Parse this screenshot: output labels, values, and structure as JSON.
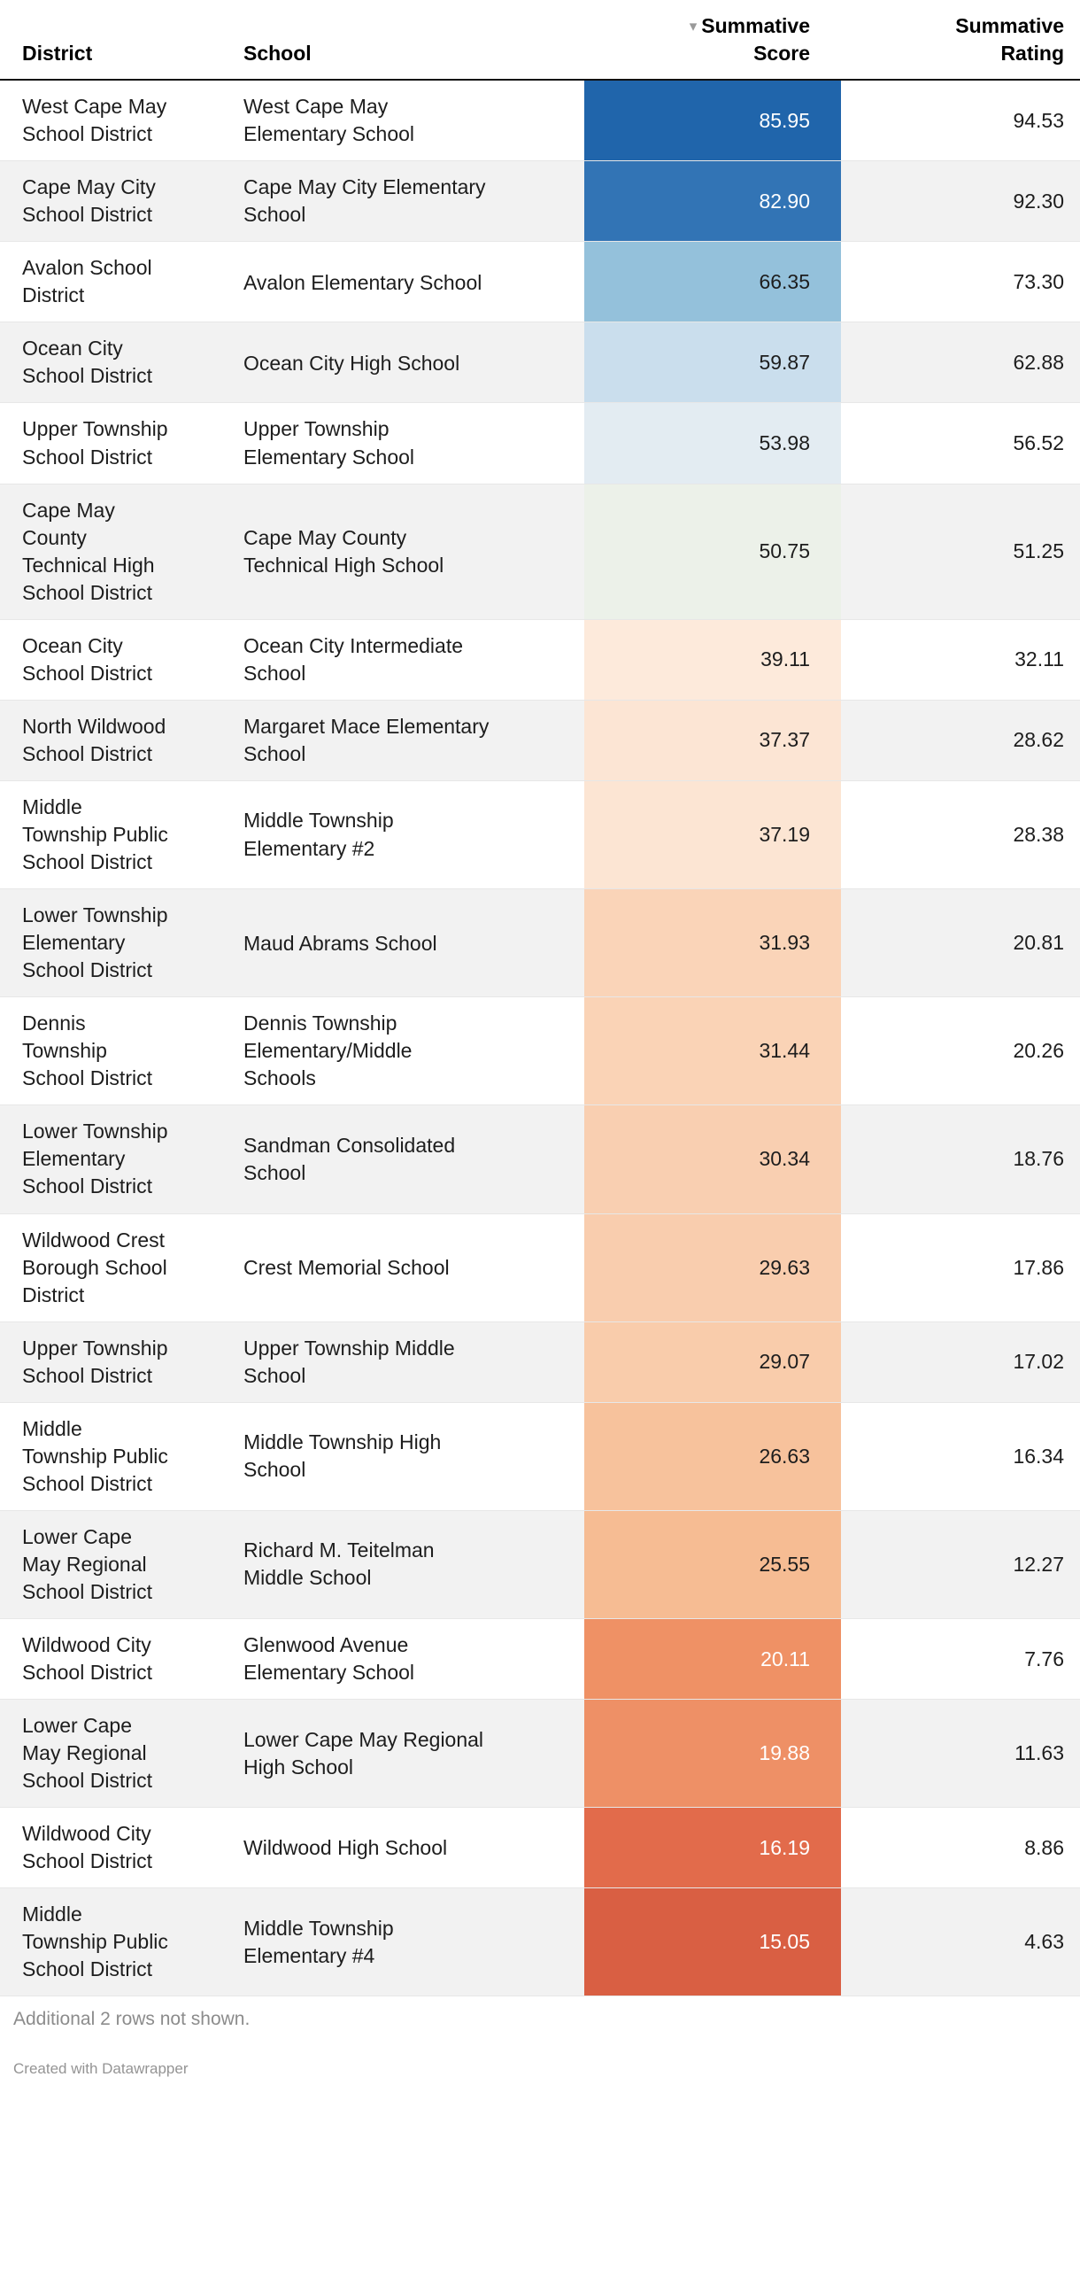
{
  "chart_data": {
    "type": "table",
    "columns": [
      {
        "label": "District",
        "align": "left"
      },
      {
        "label": "School",
        "align": "left"
      },
      {
        "line1": "Summative",
        "line2": "Score",
        "align": "right"
      },
      {
        "line1": "Summative",
        "line2": "Rating",
        "align": "right"
      }
    ],
    "sort": {
      "column": "Summative Score",
      "direction": "descending",
      "icon": "▾"
    },
    "rows": [
      {
        "district": "West Cape May School District",
        "school": "West Cape May Elementary School",
        "score": 85.95,
        "rating": 94.53,
        "score_bg": "#2065ab",
        "score_text_color": "#ffffff"
      },
      {
        "district": "Cape May City School District",
        "school": "Cape May City Elementary School",
        "score": 82.9,
        "rating": 92.3,
        "score_bg": "#3274b5",
        "score_text_color": "#ffffff"
      },
      {
        "district": "Avalon School District",
        "school": "Avalon Elementary School",
        "score": 66.35,
        "rating": 73.3,
        "score_bg": "#94c1db",
        "score_text_color": "#1d1d1d"
      },
      {
        "district": "Ocean City School District",
        "school": "Ocean City High School",
        "score": 59.87,
        "rating": 62.88,
        "score_bg": "#cadeed",
        "score_text_color": "#1d1d1d"
      },
      {
        "district": "Upper Township School District",
        "school": "Upper Township Elementary School",
        "score": 53.98,
        "rating": 56.52,
        "score_bg": "#e3ecf2",
        "score_text_color": "#1d1d1d"
      },
      {
        "district": "Cape May County Technical High School District",
        "school": "Cape May County Technical High School",
        "score": 50.75,
        "rating": 51.25,
        "score_bg": "#ecf1e9",
        "score_text_color": "#1d1d1d"
      },
      {
        "district": "Ocean City School District",
        "school": "Ocean City Intermediate School",
        "score": 39.11,
        "rating": 32.11,
        "score_bg": "#fdeadb",
        "score_text_color": "#1d1d1d"
      },
      {
        "district": "North Wildwood School District",
        "school": "Margaret Mace Elementary School",
        "score": 37.37,
        "rating": 28.62,
        "score_bg": "#fce5d4",
        "score_text_color": "#1d1d1d"
      },
      {
        "district": "Middle Township Public School District",
        "school": "Middle Township Elementary #2",
        "score": 37.19,
        "rating": 28.38,
        "score_bg": "#fce5d3",
        "score_text_color": "#1d1d1d"
      },
      {
        "district": "Lower Township Elementary School District",
        "school": "Maud Abrams School",
        "score": 31.93,
        "rating": 20.81,
        "score_bg": "#fad4b8",
        "score_text_color": "#1d1d1d"
      },
      {
        "district": "Dennis Township School District",
        "school": "Dennis Township Elementary/Middle Schools",
        "score": 31.44,
        "rating": 20.26,
        "score_bg": "#fad3b6",
        "score_text_color": "#1d1d1d"
      },
      {
        "district": "Lower Township Elementary School District",
        "school": "Sandman Consolidated School",
        "score": 30.34,
        "rating": 18.76,
        "score_bg": "#f9cfb1",
        "score_text_color": "#1d1d1d"
      },
      {
        "district": "Wildwood Crest Borough School District",
        "school": "Crest Memorial School",
        "score": 29.63,
        "rating": 17.86,
        "score_bg": "#f9cdae",
        "score_text_color": "#1d1d1d"
      },
      {
        "district": "Upper Township School District",
        "school": "Upper Township Middle School",
        "score": 29.07,
        "rating": 17.02,
        "score_bg": "#f9ccab",
        "score_text_color": "#1d1d1d"
      },
      {
        "district": "Middle Township Public School District",
        "school": "Middle Township High School",
        "score": 26.63,
        "rating": 16.34,
        "score_bg": "#f7c29c",
        "score_text_color": "#1d1d1d"
      },
      {
        "district": "Lower Cape May Regional School District",
        "school": "Richard M. Teitelman Middle School",
        "score": 25.55,
        "rating": 12.27,
        "score_bg": "#f6bc93",
        "score_text_color": "#1d1d1d"
      },
      {
        "district": "Wildwood City School District",
        "school": "Glenwood Avenue Elementary School",
        "score": 20.11,
        "rating": 7.76,
        "score_bg": "#ef9165",
        "score_text_color": "#ffffff"
      },
      {
        "district": "Lower Cape May Regional School District",
        "school": "Lower Cape May Regional High School",
        "score": 19.88,
        "rating": 11.63,
        "score_bg": "#ee9066",
        "score_text_color": "#ffffff"
      },
      {
        "district": "Wildwood City School District",
        "school": "Wildwood High School",
        "score": 16.19,
        "rating": 8.86,
        "score_bg": "#e26b4b",
        "score_text_color": "#ffffff"
      },
      {
        "district": "Middle Township Public School District",
        "school": "Middle Township Elementary #4",
        "score": 15.05,
        "rating": 4.63,
        "score_bg": "#d95f43",
        "score_text_color": "#ffffff"
      }
    ]
  },
  "footer": {
    "note": "Additional 2 rows not shown.",
    "credit": "Created with Datawrapper"
  }
}
